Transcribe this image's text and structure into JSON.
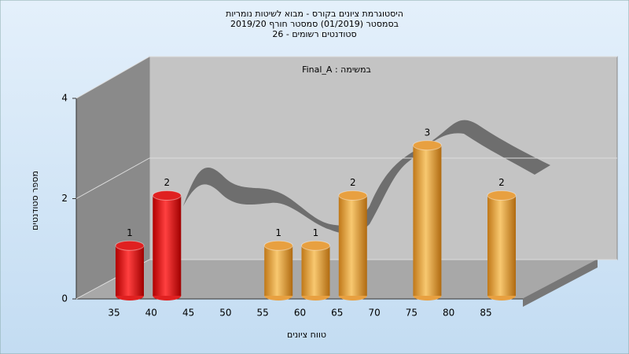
{
  "chart_data": {
    "type": "bar",
    "title": "היסטוגרמת ציונים בקורס - מבוא לשיטות נומריות",
    "subtitle": [
      "בסמסטר  (01/2019)  סמסטר חורף 2019/20",
      "סטודנטים רשומים - 26"
    ],
    "annotation": "Final_A : במשימה",
    "x_label": "טווח ציונים",
    "y_label": "מספר סטודנטים",
    "categories": [
      "35",
      "40",
      "45",
      "50",
      "55",
      "60",
      "65",
      "70",
      "75",
      "80",
      "85"
    ],
    "values": [
      1,
      2,
      0,
      0,
      1,
      1,
      2,
      0,
      3,
      0,
      2
    ],
    "colors": [
      "#e02020",
      "#e02020",
      "#e8a040",
      "#e8a040",
      "#e8a040",
      "#e8a040",
      "#e8a040",
      "#e8a040",
      "#e8a040",
      "#e8a040",
      "#e8a040"
    ],
    "ylim": [
      0,
      4
    ],
    "yticks": [
      0,
      2,
      4
    ],
    "grid": true
  }
}
